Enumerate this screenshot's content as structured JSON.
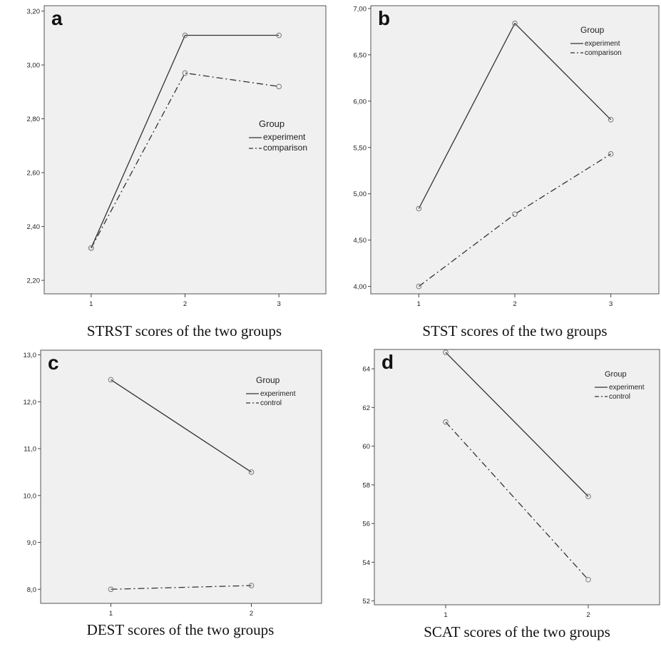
{
  "chart_data": [
    {
      "type": "line",
      "panel_label": "a",
      "caption": "STRST scores of the two groups",
      "categories": [
        "1",
        "2",
        "3"
      ],
      "ylim": [
        2.15,
        3.22
      ],
      "yticks": [
        "2,20",
        "2,40",
        "2,60",
        "2,80",
        "3,00",
        "3,20"
      ],
      "ytick_values": [
        2.2,
        2.4,
        2.6,
        2.8,
        3.0,
        3.2
      ],
      "legend": {
        "title": "Group",
        "placement": "middle-right"
      },
      "series": [
        {
          "name": "experiment",
          "style": "solid",
          "values": [
            2.32,
            3.11,
            3.11
          ]
        },
        {
          "name": "comparison",
          "style": "dashdot",
          "values": [
            2.32,
            2.97,
            2.92
          ]
        }
      ]
    },
    {
      "type": "line",
      "panel_label": "b",
      "caption": "STST scores of the two groups",
      "categories": [
        "1",
        "2",
        "3"
      ],
      "ylim": [
        3.92,
        7.03
      ],
      "yticks": [
        "4,00",
        "4,50",
        "5,00",
        "5,50",
        "6,00",
        "6,50",
        "7,00"
      ],
      "ytick_values": [
        4.0,
        4.5,
        5.0,
        5.5,
        6.0,
        6.5,
        7.0
      ],
      "legend": {
        "title": "Group",
        "placement": "top-right"
      },
      "series": [
        {
          "name": "experiment",
          "style": "solid",
          "values": [
            4.84,
            6.84,
            5.8
          ]
        },
        {
          "name": "comparison",
          "style": "dashdot",
          "values": [
            4.0,
            4.78,
            5.43
          ]
        }
      ]
    },
    {
      "type": "line",
      "panel_label": "c",
      "caption": "DEST scores of the two groups",
      "categories": [
        "1",
        "2"
      ],
      "ylim": [
        7.7,
        13.1
      ],
      "yticks": [
        "8,0",
        "9,0",
        "10,0",
        "11,0",
        "12,0",
        "13,0"
      ],
      "ytick_values": [
        8,
        9,
        10,
        11,
        12,
        13
      ],
      "legend": {
        "title": "Group",
        "placement": "top-right"
      },
      "series": [
        {
          "name": "experiment",
          "style": "solid",
          "values": [
            12.47,
            10.5
          ]
        },
        {
          "name": "control",
          "style": "dashdot",
          "values": [
            8.0,
            8.08
          ]
        }
      ]
    },
    {
      "type": "line",
      "panel_label": "d",
      "caption": "SCAT scores of the two groups",
      "categories": [
        "1",
        "2"
      ],
      "ylim": [
        51.8,
        65.0
      ],
      "yticks": [
        "52",
        "54",
        "56",
        "58",
        "60",
        "62",
        "64"
      ],
      "ytick_values": [
        52,
        54,
        56,
        58,
        60,
        62,
        64
      ],
      "legend": {
        "title": "Group",
        "placement": "top-right"
      },
      "series": [
        {
          "name": "experiment",
          "style": "solid",
          "values": [
            64.85,
            57.4
          ]
        },
        {
          "name": "control",
          "style": "dashdot",
          "values": [
            61.25,
            53.1
          ]
        }
      ]
    }
  ]
}
